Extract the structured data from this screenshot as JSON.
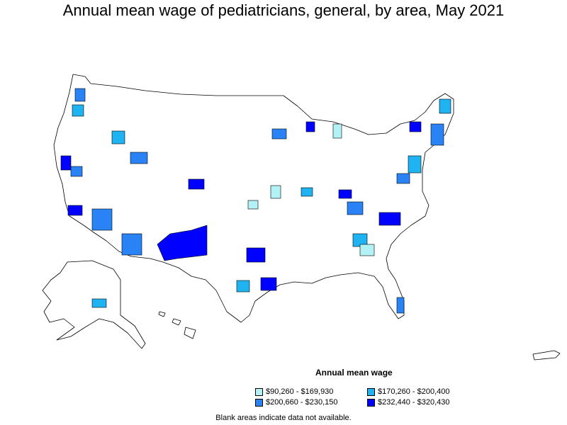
{
  "title": "Annual mean wage of pediatricians, general, by area, May 2021",
  "legend": {
    "title": "Annual mean wage",
    "items": [
      {
        "label": "$90,260 - $169,930",
        "color": "#b2f1f4"
      },
      {
        "label": "$170,260 - $200,400",
        "color": "#1fb3f2"
      },
      {
        "label": "$200,660 - $230,150",
        "color": "#2a83f4"
      },
      {
        "label": "$232,440 - $320,430",
        "color": "#0000ff"
      }
    ]
  },
  "note": "Blank areas indicate data not available.",
  "colors": {
    "background": "#ffffff",
    "outline": "#000000",
    "no_data": "#ffffff"
  }
}
